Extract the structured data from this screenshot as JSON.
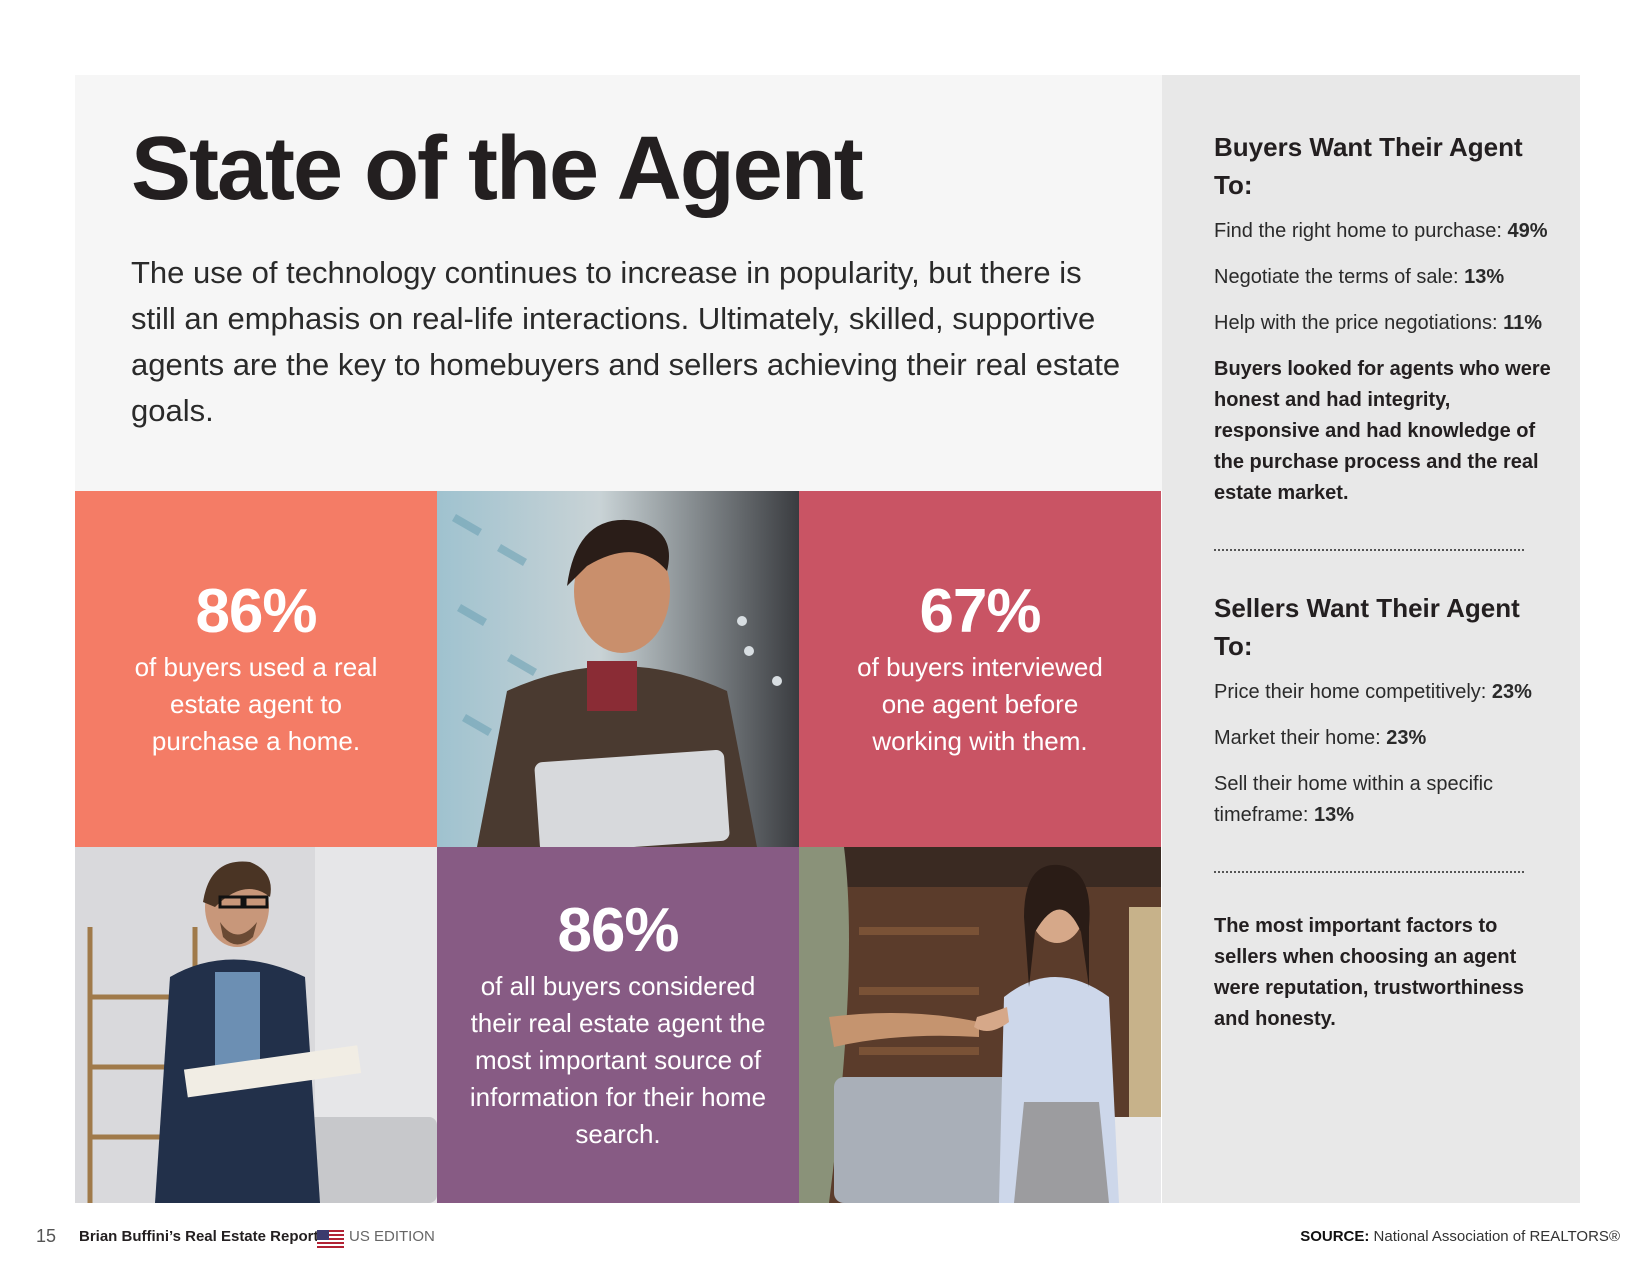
{
  "title": "State of the Agent",
  "intro": "The use of technology continues to increase in popularity, but there is still an emphasis on real-life interactions. Ultimately, skilled, supportive agents are the key to homebuyers and sellers achieving their real estate goals.",
  "colors": {
    "coral": "#f47c66",
    "rose": "#c95464",
    "plum": "#875b84",
    "side_bg": "#e8e8e8",
    "main_bg": "#f6f6f6"
  },
  "stats": [
    {
      "value": "86%",
      "text": "of buyers used a real estate agent to purchase a home."
    },
    {
      "value": "67%",
      "text": "of buyers interviewed one agent before working with them."
    },
    {
      "value": "86%",
      "text": "of all buyers considered their real estate agent the most important source of information for their home search."
    }
  ],
  "photos": [
    {
      "icon": "woman-with-tablet-photo"
    },
    {
      "icon": "man-with-notebook-photo"
    },
    {
      "icon": "handshake-photo"
    }
  ],
  "buyers": {
    "heading": "Buyers Want Their Agent To:",
    "items": [
      {
        "label": "Find the right home to purchase:",
        "value": "49%"
      },
      {
        "label": "Negotiate the terms of sale:",
        "value": "13%"
      },
      {
        "label": "Help with the price negotiations:",
        "value": "11%"
      }
    ],
    "note": "Buyers looked for agents who were honest and had integrity, responsive and had knowledge of the purchase process and the real estate market."
  },
  "sellers": {
    "heading": "Sellers Want Their Agent To:",
    "items": [
      {
        "label": "Price their home competitively:",
        "value": "23%"
      },
      {
        "label": "Market their home:",
        "value": "23%"
      },
      {
        "label": "Sell their home within a specific timeframe:",
        "value": "13%"
      }
    ],
    "note": "The most important factors to sellers when choosing an agent were reputation, trustworthiness and honesty."
  },
  "footer": {
    "page_number": "15",
    "report_name": "Brian Buffini’s Real Estate Report",
    "edition": "US EDITION",
    "flag_icon": "us-flag-icon",
    "source_label": "SOURCE:",
    "source_value": "National Association of REALTORS®"
  }
}
